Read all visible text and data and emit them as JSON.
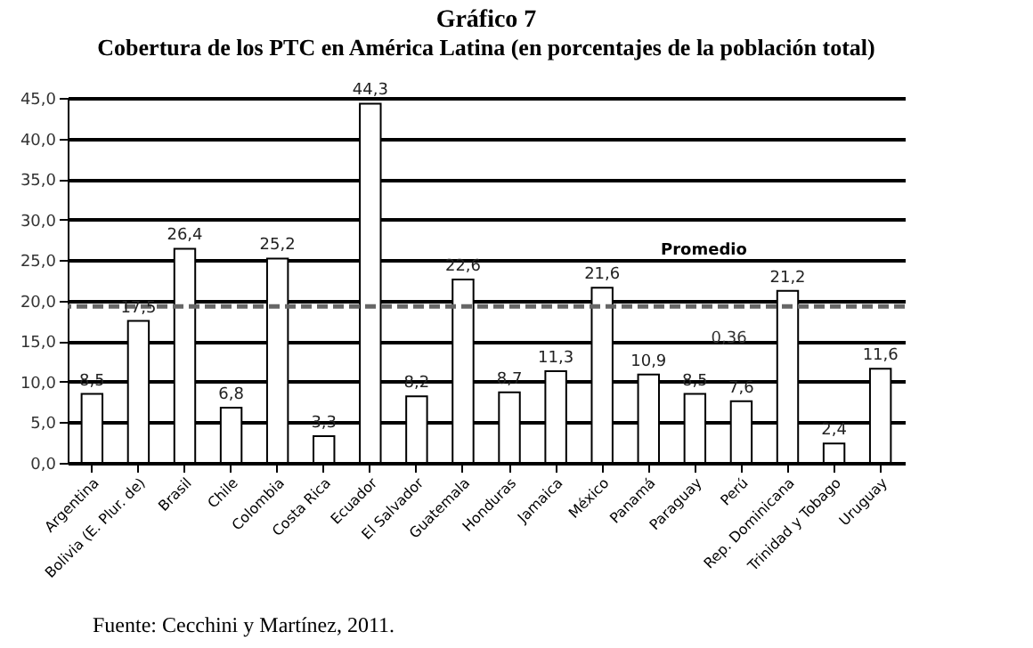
{
  "chart_data": {
    "type": "bar",
    "title": "Gráfico 7",
    "subtitle": "Cobertura de los PTC en América Latina (en porcentajes de la población total)",
    "categories": [
      "Argentina",
      "Bolivia (E. Plur. de)",
      "Brasil",
      "Chile",
      "Colombia",
      "Costa Rica",
      "Ecuador",
      "El Salvador",
      "Guatemala",
      "Honduras",
      "Jamaica",
      "México",
      "Panamá",
      "Paraguay",
      "Perú",
      "Rep. Dominicana",
      "Trinidad y Tobago",
      "Uruguay"
    ],
    "values": [
      8.5,
      17.5,
      26.4,
      6.8,
      25.2,
      3.3,
      44.3,
      8.2,
      22.6,
      8.7,
      11.3,
      21.6,
      10.9,
      8.5,
      7.6,
      21.2,
      2.4,
      11.6
    ],
    "value_labels": [
      "8,5",
      "17,5",
      "26,4",
      "6,8",
      "25,2",
      "3,3",
      "44,3",
      "8,2",
      "22,6",
      "8,7",
      "11,3",
      "21,6",
      "10,9",
      "8,5",
      "7,6",
      "21,2",
      "2,4",
      "11,6"
    ],
    "color": "#ffffff",
    "ylim": [
      0,
      45
    ],
    "yticks": [
      {
        "value": 0,
        "label": "0,0"
      },
      {
        "value": 5,
        "label": "5,0"
      },
      {
        "value": 10,
        "label": "10,0"
      },
      {
        "value": 15,
        "label": "15,0"
      },
      {
        "value": 20,
        "label": "20,0"
      },
      {
        "value": 25,
        "label": "25,0"
      },
      {
        "value": 30,
        "label": "30,0"
      },
      {
        "value": 35,
        "label": "35,0"
      },
      {
        "value": 40,
        "label": "40,0"
      },
      {
        "value": 45,
        "label": "45,0"
      }
    ],
    "grid": "y",
    "ref_lines": [
      {
        "axis": "y",
        "value": 19.3,
        "label": "Promedio",
        "color": "#666666",
        "line_style": "dashed"
      }
    ],
    "annotations": [
      "0,36",
      "Fuente: Cecchini y Martínez, 2011."
    ]
  }
}
